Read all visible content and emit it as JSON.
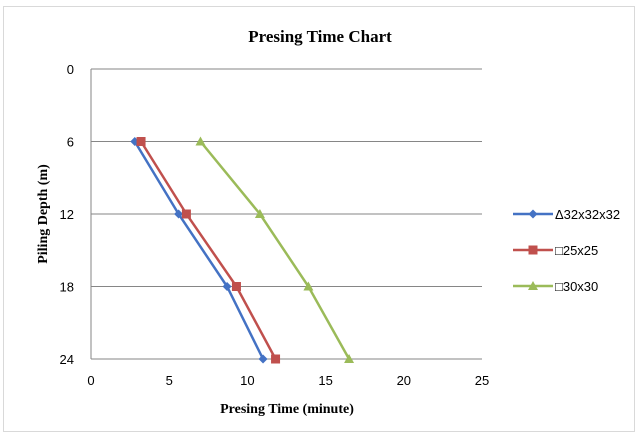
{
  "chart_data": {
    "type": "line",
    "title": "Presing Time Chart",
    "xlabel": "Presing Time (minute)",
    "ylabel": "Piling Depth (m)",
    "xlim": [
      0,
      25
    ],
    "ylim": [
      0,
      24
    ],
    "y_reversed": true,
    "x_ticks": [
      "0",
      "5",
      "10",
      "15",
      "20",
      "25"
    ],
    "y_ticks": [
      "0",
      "6",
      "12",
      "18",
      "24"
    ],
    "grid": "horizontal",
    "legend": "right",
    "series": [
      {
        "name": "Δ32x32x32",
        "color": "#4472C4",
        "marker": "diamond",
        "points": [
          {
            "x": 2.8,
            "y": 6
          },
          {
            "x": 5.6,
            "y": 12
          },
          {
            "x": 8.7,
            "y": 18
          },
          {
            "x": 11.0,
            "y": 24
          }
        ]
      },
      {
        "name": "□25x25",
        "color": "#C0504D",
        "marker": "square",
        "points": [
          {
            "x": 3.2,
            "y": 6
          },
          {
            "x": 6.1,
            "y": 12
          },
          {
            "x": 9.3,
            "y": 18
          },
          {
            "x": 11.8,
            "y": 24
          }
        ]
      },
      {
        "name": "□30x30",
        "color": "#9BBB59",
        "marker": "triangle",
        "points": [
          {
            "x": 7.0,
            "y": 6
          },
          {
            "x": 10.8,
            "y": 12
          },
          {
            "x": 13.9,
            "y": 18
          },
          {
            "x": 16.5,
            "y": 24
          }
        ]
      }
    ]
  }
}
